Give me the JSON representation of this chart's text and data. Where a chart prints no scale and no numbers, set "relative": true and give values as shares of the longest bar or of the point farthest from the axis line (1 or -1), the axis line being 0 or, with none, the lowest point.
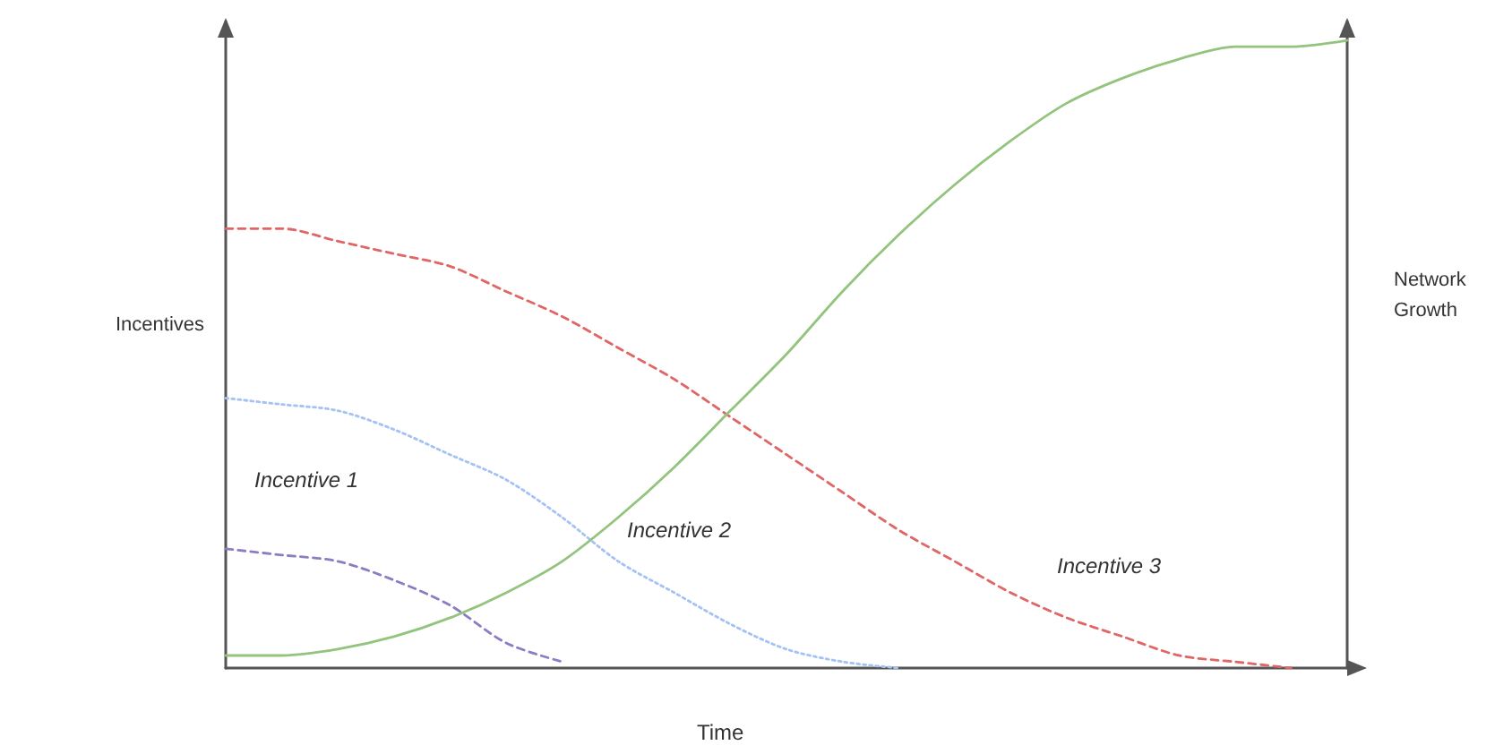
{
  "chart_data": {
    "type": "line",
    "relative": true,
    "xlabel": "Time",
    "ylabel": "Incentives",
    "y2label": "Network\nGrowth",
    "categories": [
      null,
      null,
      null,
      null,
      null,
      null,
      null,
      null,
      null,
      null,
      null,
      null,
      null,
      null,
      null,
      null,
      null,
      null,
      null,
      null,
      null
    ],
    "series": [
      {
        "color": "#e06666",
        "line_style": "dashed",
        "values": [
          0.7,
          0.7,
          0.68,
          0.66,
          0.64,
          0.6,
          0.56,
          0.51,
          0.46,
          0.4,
          0.34,
          0.28,
          0.22,
          0.17,
          0.12,
          0.08,
          0.05,
          0.02,
          0.01,
          0,
          null
        ]
      },
      {
        "color": "#a4c2f4",
        "line_style": "dotted",
        "values": [
          0.43,
          0.42,
          0.41,
          0.38,
          0.34,
          0.3,
          0.24,
          0.17,
          0.12,
          0.07,
          0.03,
          0.01,
          0,
          null,
          null,
          null,
          null,
          null,
          null,
          null,
          null
        ]
      },
      {
        "color": "#8e7cc3",
        "line_style": "dashed",
        "values": [
          0.19,
          0.18,
          0.17,
          0.14,
          0.1,
          0.04,
          0.01,
          null,
          null,
          null,
          null,
          null,
          null,
          null,
          null,
          null,
          null,
          null,
          null,
          null,
          null
        ]
      },
      {
        "color": "#93c47d",
        "line_style": "solid",
        "values": [
          0.02,
          0.02,
          0.03,
          0.05,
          0.08,
          0.12,
          0.17,
          0.24,
          0.32,
          0.41,
          0.5,
          0.6,
          0.69,
          0.77,
          0.84,
          0.9,
          0.94,
          0.97,
          0.99,
          0.99,
          1
        ]
      }
    ],
    "annotations": [
      "Incentive 1",
      "Incentive 2",
      "Incentive 3"
    ],
    "marker": "none"
  }
}
